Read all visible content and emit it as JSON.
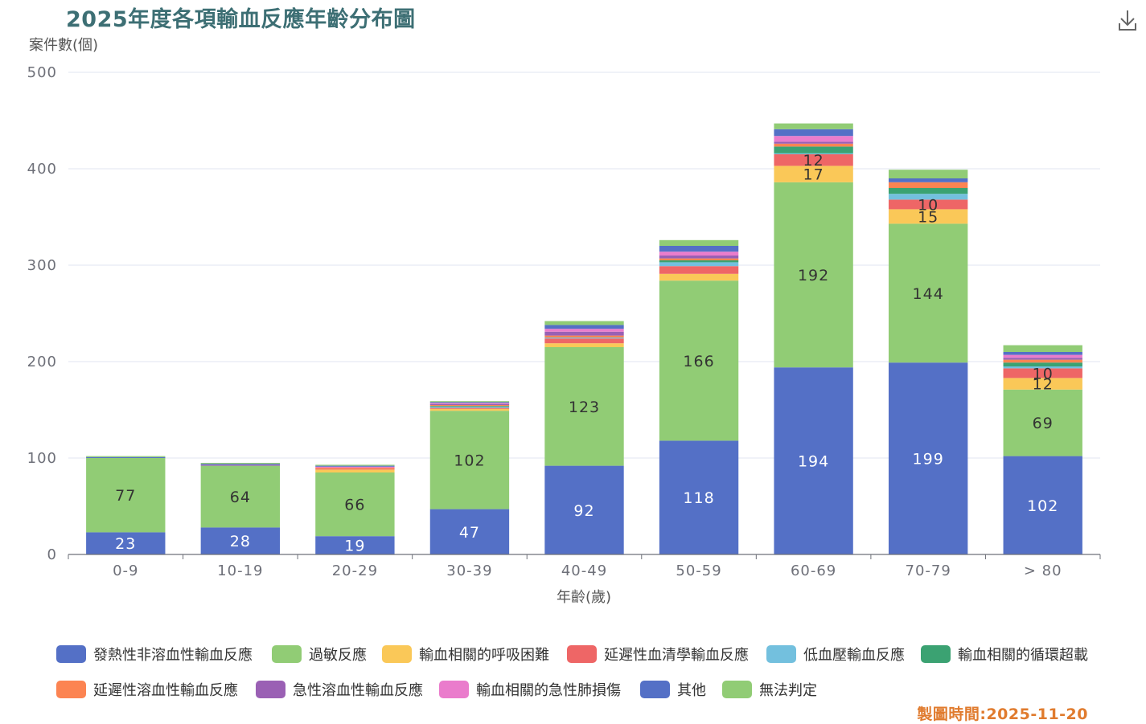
{
  "header": {
    "title": "2025年度各項輸血反應年齡分布圖",
    "made_date": "製圖時間:2025-11-20"
  },
  "toolbar": {
    "download_icon": "download-icon"
  },
  "colors": {
    "series": [
      "#5470c6",
      "#91cc75",
      "#fac858",
      "#ee6666",
      "#73c0de",
      "#3ba272",
      "#fc8452",
      "#9a60b4",
      "#ea7ccc",
      "#5470c6",
      "#91cc75"
    ],
    "title": "#3d6f74",
    "made_date": "#e07b2e"
  },
  "chart_data": {
    "type": "bar",
    "stacked": true,
    "categories": [
      "0-9",
      "10-19",
      "20-29",
      "30-39",
      "40-49",
      "50-59",
      "60-69",
      "70-79",
      "> 80"
    ],
    "xlabel": "年齡(歲)",
    "ylabel": "案件數(個)",
    "ylim": [
      0,
      500
    ],
    "yticks": [
      0,
      100,
      200,
      300,
      400,
      500
    ],
    "grid": true,
    "legend_position": "bottom",
    "series": [
      {
        "name": "發熱性非溶血性輸血反應",
        "values": [
          23,
          28,
          19,
          47,
          92,
          118,
          194,
          199,
          102
        ],
        "labeled": [
          true,
          true,
          true,
          true,
          true,
          true,
          true,
          true,
          true
        ]
      },
      {
        "name": "過敏反應",
        "values": [
          77,
          64,
          66,
          102,
          123,
          166,
          192,
          144,
          69
        ],
        "labeled": [
          true,
          true,
          true,
          true,
          true,
          true,
          true,
          true,
          true
        ]
      },
      {
        "name": "輸血相關的呼吸困難",
        "values": [
          0,
          0,
          3,
          2,
          4,
          7,
          17,
          15,
          12
        ],
        "labeled": [
          false,
          false,
          false,
          false,
          false,
          false,
          true,
          true,
          true
        ]
      },
      {
        "name": "延遲性血清學輸血反應",
        "values": [
          0,
          0,
          1,
          1,
          5,
          8,
          12,
          10,
          10
        ],
        "labeled": [
          false,
          false,
          false,
          false,
          false,
          false,
          true,
          true,
          true
        ]
      },
      {
        "name": "低血壓輸血反應",
        "values": [
          0,
          0,
          0,
          1,
          1,
          4,
          1,
          6,
          2
        ],
        "labeled": [
          false,
          false,
          false,
          false,
          false,
          false,
          false,
          false,
          false
        ]
      },
      {
        "name": "輸血相關的循環超載",
        "values": [
          0,
          0,
          0,
          1,
          0,
          2,
          7,
          6,
          4
        ],
        "labeled": [
          false,
          false,
          false,
          false,
          false,
          false,
          false,
          false,
          false
        ]
      },
      {
        "name": "延遲性溶血性輸血反應",
        "values": [
          0,
          0,
          1,
          1,
          2,
          2,
          3,
          6,
          3
        ],
        "labeled": [
          false,
          false,
          false,
          false,
          false,
          false,
          false,
          false,
          false
        ]
      },
      {
        "name": "急性溶血性輸血反應",
        "values": [
          0,
          1,
          0,
          1,
          4,
          3,
          2,
          0,
          2
        ],
        "labeled": [
          false,
          false,
          false,
          false,
          false,
          false,
          false,
          false,
          false
        ]
      },
      {
        "name": "輸血相關的急性肺損傷",
        "values": [
          0,
          0,
          1,
          1,
          3,
          4,
          6,
          0,
          3
        ],
        "labeled": [
          false,
          false,
          false,
          false,
          false,
          false,
          false,
          false,
          false
        ]
      },
      {
        "name": "其他",
        "values": [
          1,
          1,
          1,
          1,
          4,
          6,
          7,
          4,
          3
        ],
        "labeled": [
          false,
          false,
          false,
          false,
          false,
          false,
          false,
          false,
          false
        ]
      },
      {
        "name": "無法判定",
        "values": [
          1,
          1,
          1,
          1,
          4,
          6,
          6,
          9,
          7
        ],
        "labeled": [
          false,
          false,
          false,
          false,
          false,
          false,
          false,
          false,
          false
        ]
      }
    ]
  }
}
